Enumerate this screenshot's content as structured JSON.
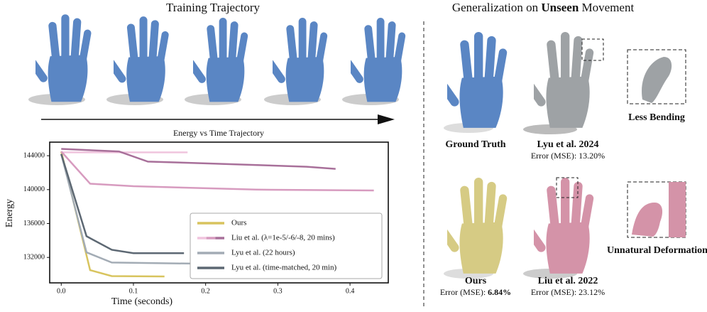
{
  "training": {
    "title": "Training Trajectory"
  },
  "chart_data": {
    "type": "line",
    "title": "Energy vs Time Trajectory",
    "x_label": "Time (seconds)",
    "y_label": "Energy",
    "xlim": [
      -0.016,
      0.453
    ],
    "ylim": [
      129000,
      145600
    ],
    "xticks": [
      {
        "value": 0,
        "label": "0.0"
      },
      0.1,
      0.2,
      0.3,
      0.4
    ],
    "yticks": [
      132000,
      136000,
      140000,
      144000
    ],
    "series": [
      {
        "name": "Ours",
        "lines": [
          {
            "color": "#d8c45e",
            "x": [
              0,
              0.04,
              0.07,
              0.143
            ],
            "values": [
              144500,
              130500,
              129800,
              129750
            ]
          }
        ]
      },
      {
        "name": "Liu et al. (λ=1e-5/-6/-8, 20 mins)",
        "lines": [
          {
            "color": "#f0c4de",
            "x": [
              0,
              0.175
            ],
            "values": [
              144400,
              144400
            ]
          },
          {
            "color": "#d79bbf",
            "x": [
              0,
              0.04,
              0.1,
              0.27,
              0.433
            ],
            "values": [
              144500,
              140700,
              140400,
              140000,
              139900
            ]
          },
          {
            "color": "#a8709a",
            "x": [
              0,
              0.08,
              0.12,
              0.2,
              0.34,
              0.38
            ],
            "values": [
              144800,
              144500,
              143300,
              143100,
              142700,
              142450
            ]
          }
        ]
      },
      {
        "name": "Lyu et al. (22 hours)",
        "lines": [
          {
            "color": "#a3acb5",
            "x": [
              0,
              0.035,
              0.07,
              0.2
            ],
            "values": [
              144200,
              132600,
              131400,
              131250
            ]
          }
        ]
      },
      {
        "name": "Lyu et al. (time-matched, 20 min)",
        "lines": [
          {
            "color": "#5d6873",
            "x": [
              0,
              0.035,
              0.07,
              0.1,
              0.17
            ],
            "values": [
              144200,
              134500,
              132900,
              132500,
              132500
            ]
          }
        ]
      }
    ]
  },
  "generalization": {
    "title": [
      "Generalization on ",
      "Unseen",
      " Movement"
    ],
    "ground_truth": {
      "label": "Ground Truth"
    },
    "lyu": {
      "label": "Lyu et al. 2024",
      "error": "Error (MSE): 13.20%"
    },
    "zoom_top": {
      "label": "Less Bending"
    },
    "ours": {
      "label": "Ours",
      "error_prefix": "Error (MSE): ",
      "error_value": "6.84%"
    },
    "liu": {
      "label": "Liu et al. 2022",
      "error": "Error (MSE): 23.12%"
    },
    "zoom_bottom": {
      "label": "Unnatural Deformation"
    }
  }
}
